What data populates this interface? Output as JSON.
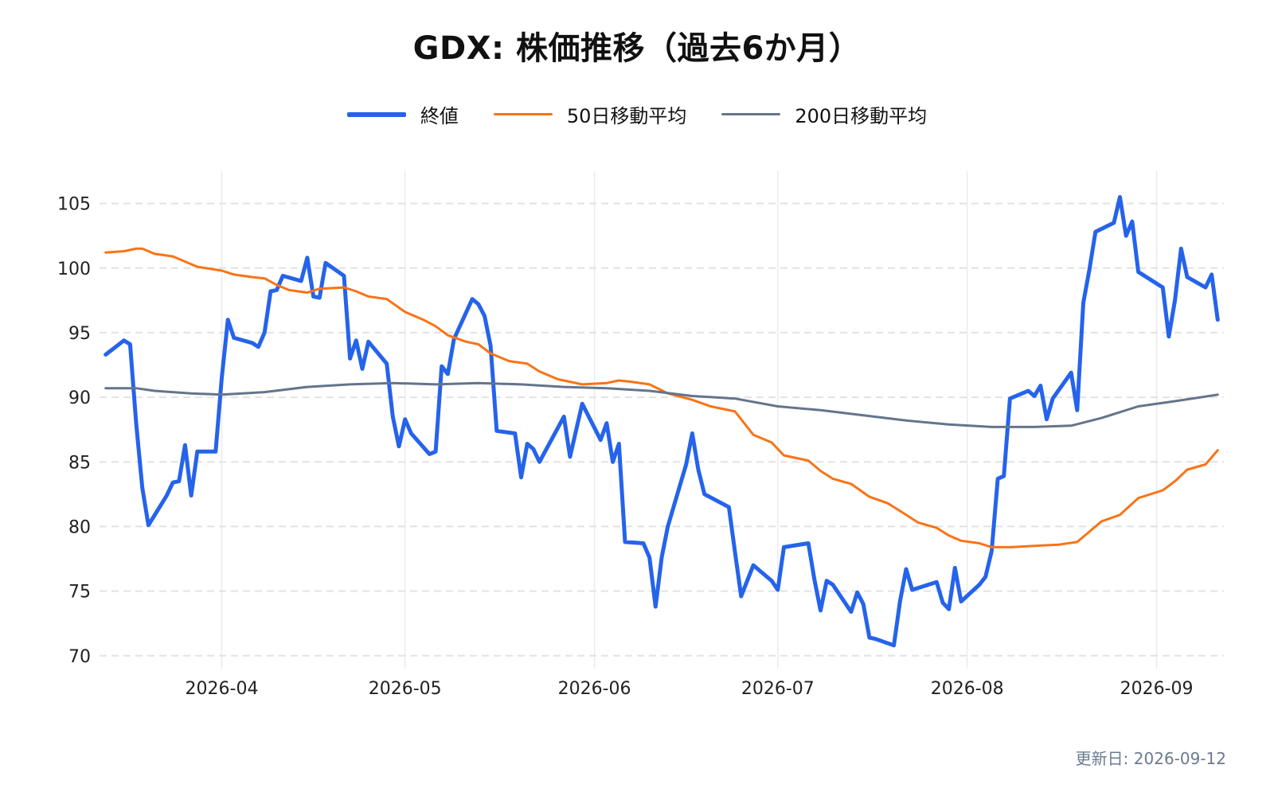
{
  "chart_data": {
    "type": "line",
    "title": "GDX: 株価推移（過去6か月）",
    "xlabel": "",
    "ylabel": "",
    "x_axis": "date",
    "xlim": [
      "2026-03-12",
      "2026-09-12"
    ],
    "ylim": [
      69,
      107.5
    ],
    "x_ticks": [
      "2026-04",
      "2026-05",
      "2026-06",
      "2026-07",
      "2026-08",
      "2026-09"
    ],
    "x_tick_dates": [
      "2026-04-01",
      "2026-05-01",
      "2026-06-01",
      "2026-07-01",
      "2026-08-01",
      "2026-09-01"
    ],
    "y_ticks": [
      70,
      75,
      80,
      85,
      90,
      95,
      100,
      105
    ],
    "grid": true,
    "legend_position": "top-center",
    "series": [
      {
        "name": "終値",
        "color": "#2563eb",
        "points": [
          [
            "2026-03-13",
            93.3
          ],
          [
            "2026-03-16",
            94.4
          ],
          [
            "2026-03-17",
            94.1
          ],
          [
            "2026-03-18",
            88.0
          ],
          [
            "2026-03-19",
            83.0
          ],
          [
            "2026-03-20",
            80.1
          ],
          [
            "2026-03-23",
            82.4
          ],
          [
            "2026-03-24",
            83.4
          ],
          [
            "2026-03-25",
            83.5
          ],
          [
            "2026-03-26",
            86.3
          ],
          [
            "2026-03-27",
            82.4
          ],
          [
            "2026-03-28",
            85.8
          ],
          [
            "2026-03-31",
            85.8
          ],
          [
            "2026-04-01",
            91.5
          ],
          [
            "2026-04-02",
            96.0
          ],
          [
            "2026-04-03",
            94.6
          ],
          [
            "2026-04-06",
            94.2
          ],
          [
            "2026-04-07",
            93.9
          ],
          [
            "2026-04-08",
            95.0
          ],
          [
            "2026-04-09",
            98.2
          ],
          [
            "2026-04-10",
            98.3
          ],
          [
            "2026-04-11",
            99.4
          ],
          [
            "2026-04-14",
            99.0
          ],
          [
            "2026-04-15",
            100.8
          ],
          [
            "2026-04-16",
            97.8
          ],
          [
            "2026-04-17",
            97.7
          ],
          [
            "2026-04-18",
            100.4
          ],
          [
            "2026-04-21",
            99.4
          ],
          [
            "2026-04-22",
            93.0
          ],
          [
            "2026-04-23",
            94.4
          ],
          [
            "2026-04-24",
            92.2
          ],
          [
            "2026-04-25",
            94.3
          ],
          [
            "2026-04-28",
            92.6
          ],
          [
            "2026-04-29",
            88.5
          ],
          [
            "2026-04-30",
            86.2
          ],
          [
            "2026-05-01",
            88.3
          ],
          [
            "2026-05-02",
            87.2
          ],
          [
            "2026-05-05",
            85.6
          ],
          [
            "2026-05-06",
            85.8
          ],
          [
            "2026-05-07",
            92.4
          ],
          [
            "2026-05-08",
            91.8
          ],
          [
            "2026-05-09",
            94.5
          ],
          [
            "2026-05-12",
            97.6
          ],
          [
            "2026-05-13",
            97.2
          ],
          [
            "2026-05-14",
            96.3
          ],
          [
            "2026-05-15",
            94.0
          ],
          [
            "2026-05-16",
            87.4
          ],
          [
            "2026-05-19",
            87.2
          ],
          [
            "2026-05-20",
            83.8
          ],
          [
            "2026-05-21",
            86.4
          ],
          [
            "2026-05-22",
            86.0
          ],
          [
            "2026-05-23",
            85.0
          ],
          [
            "2026-05-27",
            88.5
          ],
          [
            "2026-05-28",
            85.4
          ],
          [
            "2026-05-30",
            89.5
          ],
          [
            "2026-06-02",
            86.7
          ],
          [
            "2026-06-03",
            88.0
          ],
          [
            "2026-06-04",
            85.0
          ],
          [
            "2026-06-05",
            86.4
          ],
          [
            "2026-06-06",
            78.8
          ],
          [
            "2026-06-09",
            78.7
          ],
          [
            "2026-06-10",
            77.6
          ],
          [
            "2026-06-11",
            73.8
          ],
          [
            "2026-06-12",
            77.6
          ],
          [
            "2026-06-13",
            80.0
          ],
          [
            "2026-06-16",
            84.8
          ],
          [
            "2026-06-17",
            87.2
          ],
          [
            "2026-06-18",
            84.4
          ],
          [
            "2026-06-19",
            82.5
          ],
          [
            "2026-06-23",
            81.5
          ],
          [
            "2026-06-24",
            78.0
          ],
          [
            "2026-06-25",
            74.6
          ],
          [
            "2026-06-27",
            77.0
          ],
          [
            "2026-06-30",
            75.8
          ],
          [
            "2026-07-01",
            75.1
          ],
          [
            "2026-07-02",
            78.4
          ],
          [
            "2026-07-06",
            78.7
          ],
          [
            "2026-07-07",
            75.9
          ],
          [
            "2026-07-08",
            73.5
          ],
          [
            "2026-07-09",
            75.8
          ],
          [
            "2026-07-10",
            75.5
          ],
          [
            "2026-07-13",
            73.4
          ],
          [
            "2026-07-14",
            74.9
          ],
          [
            "2026-07-15",
            74.0
          ],
          [
            "2026-07-16",
            71.4
          ],
          [
            "2026-07-17",
            71.3
          ],
          [
            "2026-07-20",
            70.8
          ],
          [
            "2026-07-21",
            74.2
          ],
          [
            "2026-07-22",
            76.7
          ],
          [
            "2026-07-23",
            75.1
          ],
          [
            "2026-07-27",
            75.7
          ],
          [
            "2026-07-28",
            74.1
          ],
          [
            "2026-07-29",
            73.6
          ],
          [
            "2026-07-30",
            76.8
          ],
          [
            "2026-07-31",
            74.2
          ],
          [
            "2026-08-03",
            75.5
          ],
          [
            "2026-08-04",
            76.1
          ],
          [
            "2026-08-05",
            78.1
          ],
          [
            "2026-08-06",
            83.7
          ],
          [
            "2026-08-07",
            83.9
          ],
          [
            "2026-08-08",
            89.9
          ],
          [
            "2026-08-11",
            90.5
          ],
          [
            "2026-08-12",
            90.1
          ],
          [
            "2026-08-13",
            90.9
          ],
          [
            "2026-08-14",
            88.3
          ],
          [
            "2026-08-15",
            89.9
          ],
          [
            "2026-08-18",
            91.9
          ],
          [
            "2026-08-19",
            89.0
          ],
          [
            "2026-08-20",
            97.3
          ],
          [
            "2026-08-21",
            99.9
          ],
          [
            "2026-08-22",
            102.8
          ],
          [
            "2026-08-25",
            103.5
          ],
          [
            "2026-08-26",
            105.5
          ],
          [
            "2026-08-27",
            102.5
          ],
          [
            "2026-08-28",
            103.6
          ],
          [
            "2026-08-29",
            99.7
          ],
          [
            "2026-09-02",
            98.5
          ],
          [
            "2026-09-03",
            94.7
          ],
          [
            "2026-09-04",
            97.5
          ],
          [
            "2026-09-05",
            101.5
          ],
          [
            "2026-09-06",
            99.3
          ],
          [
            "2026-09-09",
            98.5
          ],
          [
            "2026-09-10",
            99.5
          ],
          [
            "2026-09-11",
            96.0
          ]
        ]
      },
      {
        "name": "50日移動平均",
        "color": "#f97316",
        "points": [
          [
            "2026-03-13",
            101.2
          ],
          [
            "2026-03-16",
            101.3
          ],
          [
            "2026-03-18",
            101.5
          ],
          [
            "2026-03-19",
            101.5
          ],
          [
            "2026-03-21",
            101.1
          ],
          [
            "2026-03-24",
            100.9
          ],
          [
            "2026-03-26",
            100.5
          ],
          [
            "2026-03-28",
            100.1
          ],
          [
            "2026-04-01",
            99.8
          ],
          [
            "2026-04-03",
            99.5
          ],
          [
            "2026-04-06",
            99.3
          ],
          [
            "2026-04-08",
            99.2
          ],
          [
            "2026-04-10",
            98.7
          ],
          [
            "2026-04-12",
            98.3
          ],
          [
            "2026-04-15",
            98.1
          ],
          [
            "2026-04-17",
            98.4
          ],
          [
            "2026-04-21",
            98.5
          ],
          [
            "2026-04-23",
            98.2
          ],
          [
            "2026-04-25",
            97.8
          ],
          [
            "2026-04-28",
            97.6
          ],
          [
            "2026-05-01",
            96.6
          ],
          [
            "2026-05-04",
            96.0
          ],
          [
            "2026-05-06",
            95.5
          ],
          [
            "2026-05-08",
            94.8
          ],
          [
            "2026-05-11",
            94.3
          ],
          [
            "2026-05-13",
            94.1
          ],
          [
            "2026-05-15",
            93.4
          ],
          [
            "2026-05-18",
            92.8
          ],
          [
            "2026-05-21",
            92.6
          ],
          [
            "2026-05-23",
            92.0
          ],
          [
            "2026-05-26",
            91.4
          ],
          [
            "2026-05-30",
            91.0
          ],
          [
            "2026-06-03",
            91.1
          ],
          [
            "2026-06-05",
            91.3
          ],
          [
            "2026-06-07",
            91.2
          ],
          [
            "2026-06-10",
            91.0
          ],
          [
            "2026-06-13",
            90.3
          ],
          [
            "2026-06-17",
            89.8
          ],
          [
            "2026-06-20",
            89.3
          ],
          [
            "2026-06-24",
            88.9
          ],
          [
            "2026-06-27",
            87.1
          ],
          [
            "2026-06-30",
            86.5
          ],
          [
            "2026-07-02",
            85.5
          ],
          [
            "2026-07-06",
            85.1
          ],
          [
            "2026-07-08",
            84.3
          ],
          [
            "2026-07-10",
            83.7
          ],
          [
            "2026-07-13",
            83.3
          ],
          [
            "2026-07-16",
            82.3
          ],
          [
            "2026-07-19",
            81.8
          ],
          [
            "2026-07-21",
            81.2
          ],
          [
            "2026-07-24",
            80.3
          ],
          [
            "2026-07-27",
            79.9
          ],
          [
            "2026-07-29",
            79.3
          ],
          [
            "2026-07-31",
            78.9
          ],
          [
            "2026-08-03",
            78.7
          ],
          [
            "2026-08-05",
            78.4
          ],
          [
            "2026-08-08",
            78.4
          ],
          [
            "2026-08-12",
            78.5
          ],
          [
            "2026-08-16",
            78.6
          ],
          [
            "2026-08-19",
            78.8
          ],
          [
            "2026-08-21",
            79.6
          ],
          [
            "2026-08-23",
            80.4
          ],
          [
            "2026-08-26",
            80.9
          ],
          [
            "2026-08-29",
            82.2
          ],
          [
            "2026-09-02",
            82.8
          ],
          [
            "2026-09-04",
            83.5
          ],
          [
            "2026-09-06",
            84.4
          ],
          [
            "2026-09-09",
            84.8
          ],
          [
            "2026-09-11",
            85.9
          ]
        ]
      },
      {
        "name": "200日移動平均",
        "color": "#64748b",
        "points": [
          [
            "2026-03-13",
            90.7
          ],
          [
            "2026-03-18",
            90.7
          ],
          [
            "2026-03-21",
            90.5
          ],
          [
            "2026-03-27",
            90.3
          ],
          [
            "2026-04-01",
            90.2
          ],
          [
            "2026-04-08",
            90.4
          ],
          [
            "2026-04-15",
            90.8
          ],
          [
            "2026-04-22",
            91.0
          ],
          [
            "2026-04-29",
            91.1
          ],
          [
            "2026-05-06",
            91.0
          ],
          [
            "2026-05-13",
            91.1
          ],
          [
            "2026-05-20",
            91.0
          ],
          [
            "2026-05-27",
            90.8
          ],
          [
            "2026-06-03",
            90.7
          ],
          [
            "2026-06-10",
            90.5
          ],
          [
            "2026-06-17",
            90.1
          ],
          [
            "2026-06-24",
            89.9
          ],
          [
            "2026-07-01",
            89.3
          ],
          [
            "2026-07-08",
            89.0
          ],
          [
            "2026-07-15",
            88.6
          ],
          [
            "2026-07-22",
            88.2
          ],
          [
            "2026-07-29",
            87.9
          ],
          [
            "2026-08-05",
            87.7
          ],
          [
            "2026-08-12",
            87.7
          ],
          [
            "2026-08-18",
            87.8
          ],
          [
            "2026-08-23",
            88.4
          ],
          [
            "2026-08-29",
            89.3
          ],
          [
            "2026-09-04",
            89.7
          ],
          [
            "2026-09-11",
            90.2
          ]
        ]
      }
    ]
  },
  "footer": {
    "updated": "更新日: 2026-09-12"
  }
}
